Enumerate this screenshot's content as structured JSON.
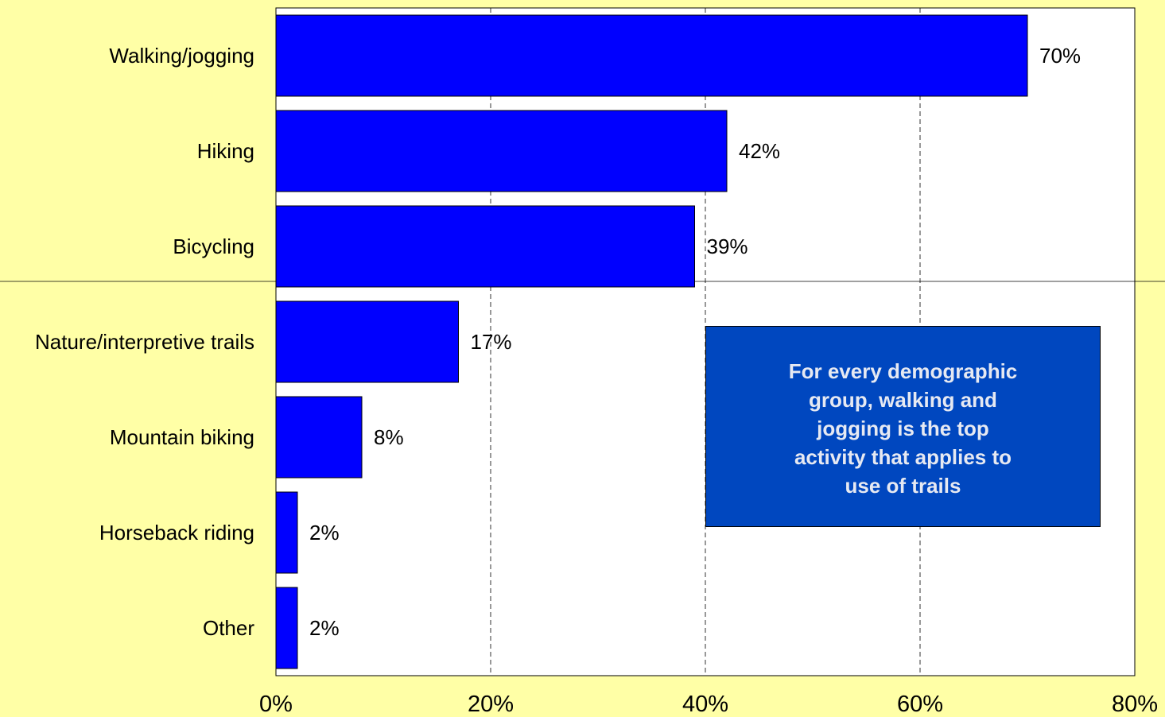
{
  "colors": {
    "background": "#ffffa6",
    "plot_background": "#ffffff",
    "bar_fill": "#0000ff",
    "callout_fill": "#0047bf",
    "callout_text": "#e6e9f2"
  },
  "callout": {
    "text": "For every demographic\ngroup, walking and\njogging is the top\nactivity that applies  to\nuse of trails"
  },
  "chart_data": {
    "type": "bar",
    "orientation": "horizontal",
    "title": "",
    "xlabel": "",
    "ylabel": "",
    "categories": [
      "Walking/jogging",
      "Hiking",
      "Bicycling",
      "Nature/interpretive trails",
      "Mountain biking",
      "Horseback riding",
      "Other"
    ],
    "values": [
      70,
      42,
      39,
      17,
      8,
      2,
      2
    ],
    "data_labels": [
      "70%",
      "42%",
      "39%",
      "17%",
      "8%",
      "2%",
      "2%"
    ],
    "xlim": [
      0,
      80
    ],
    "x_ticks": [
      0,
      20,
      40,
      60,
      80
    ],
    "x_tick_labels": [
      "0%",
      "20%",
      "40%",
      "60%",
      "80%"
    ],
    "grid": "vertical dashed"
  }
}
